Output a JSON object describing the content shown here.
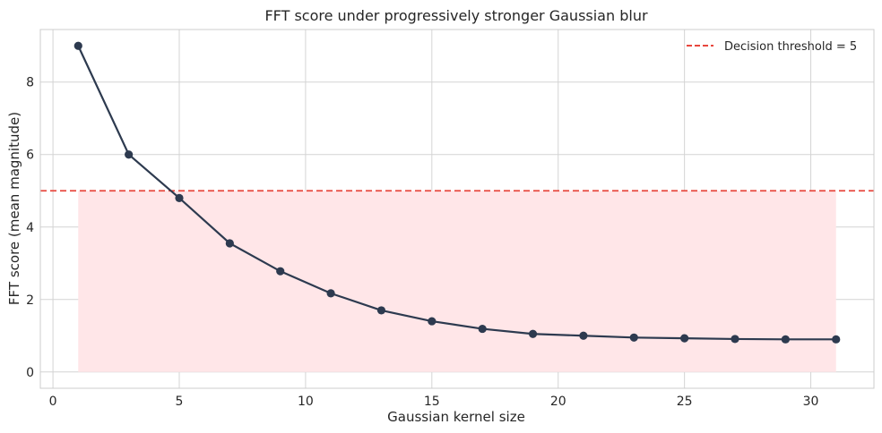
{
  "chart_data": {
    "type": "line",
    "title": "FFT score under progressively stronger Gaussian blur",
    "xlabel": "Gaussian kernel size",
    "ylabel": "FFT score (mean magnitude)",
    "xlim": [
      -0.5,
      32.5
    ],
    "ylim": [
      -0.45,
      9.45
    ],
    "xticks": [
      0,
      5,
      10,
      15,
      20,
      25,
      30
    ],
    "yticks": [
      0,
      2,
      4,
      6,
      8
    ],
    "grid": true,
    "legend_position": "top-right",
    "x": [
      1,
      3,
      5,
      7,
      9,
      11,
      13,
      15,
      17,
      19,
      21,
      23,
      25,
      27,
      29,
      31
    ],
    "series": [
      {
        "values": [
          9.0,
          6.0,
          4.8,
          3.55,
          2.78,
          2.17,
          1.7,
          1.4,
          1.19,
          1.05,
          1.0,
          0.95,
          0.93,
          0.91,
          0.9,
          0.9
        ],
        "color": "#2d3a4f"
      }
    ],
    "threshold": {
      "name": "Decision threshold = 5",
      "value": 5,
      "color": "#e8473d",
      "style": "dashed"
    },
    "shaded_region": {
      "x_range": [
        1,
        31
      ],
      "y_range": [
        0,
        5
      ],
      "color": "#ffe6e8"
    }
  }
}
